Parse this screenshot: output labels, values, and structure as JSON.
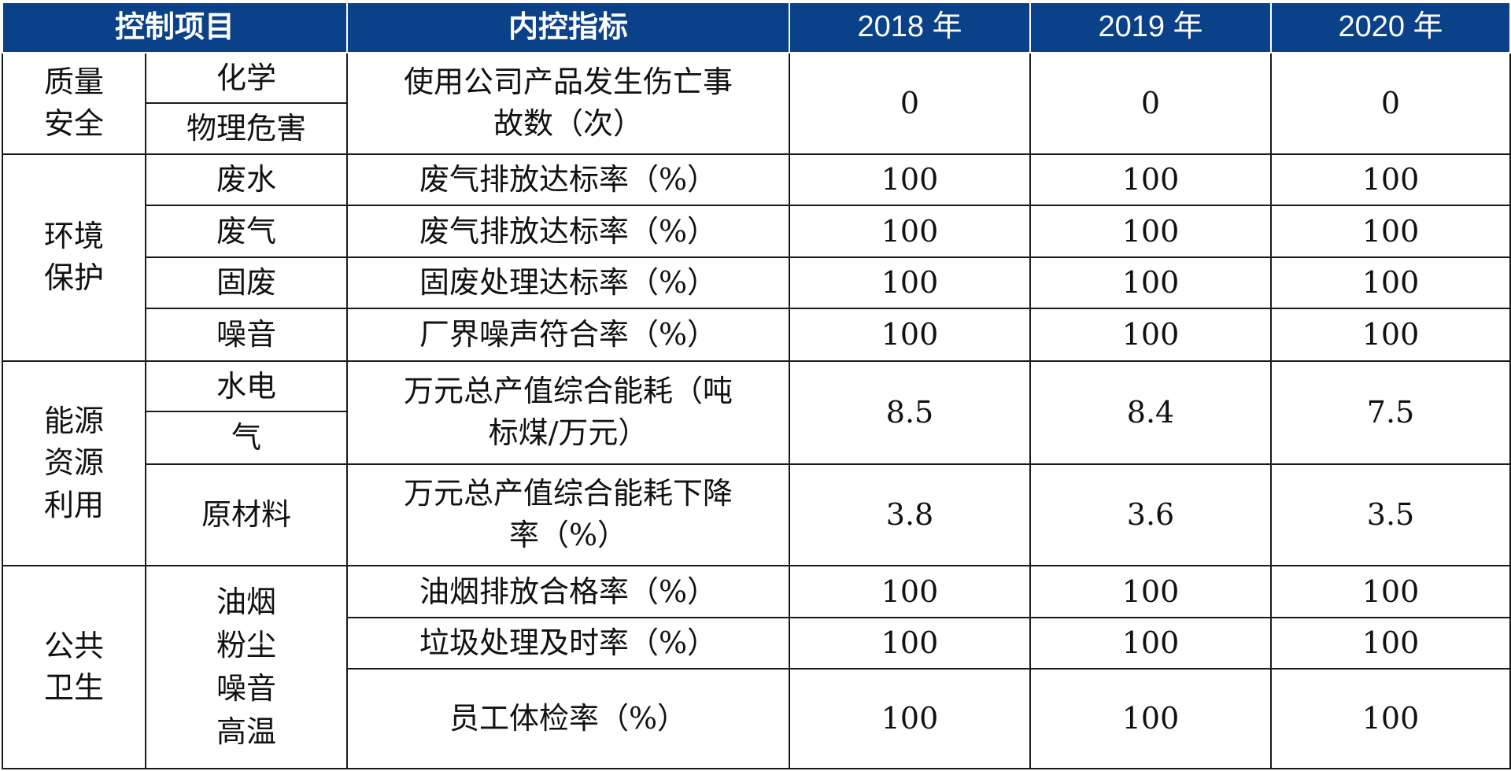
{
  "header": {
    "col_item": "控制项目",
    "col_indicator": "内控指标",
    "col_2018": "2018 年",
    "col_2019": "2019 年",
    "col_2020": "2020 年"
  },
  "groups": {
    "quality": {
      "label_l1": "质量",
      "label_l2": "安全"
    },
    "env": {
      "label_l1": "环境",
      "label_l2": "保护"
    },
    "energy": {
      "label_l1": "能源",
      "label_l2": "资源",
      "label_l3": "利用"
    },
    "health": {
      "label_l1": "公共",
      "label_l2": "卫生"
    }
  },
  "rows": {
    "q_chem": "化学",
    "q_phys": "物理危害",
    "q_ind_l1": "使用公司产品发生伤亡事",
    "q_ind_l2": "故数（次）",
    "q_2018": "0",
    "q_2019": "0",
    "q_2020": "0",
    "e1_sub": "废水",
    "e1_ind": "废气排放达标率（%）",
    "e1_2018": "100",
    "e1_2019": "100",
    "e1_2020": "100",
    "e2_sub": "废气",
    "e2_ind": "废气排放达标率（%）",
    "e2_2018": "100",
    "e2_2019": "100",
    "e2_2020": "100",
    "e3_sub": "固废",
    "e3_ind": "固废处理达标率（%）",
    "e3_2018": "100",
    "e3_2019": "100",
    "e3_2020": "100",
    "e4_sub": "噪音",
    "e4_ind": "厂界噪声符合率（%）",
    "e4_2018": "100",
    "e4_2019": "100",
    "e4_2020": "100",
    "n1_sub_a": "水电",
    "n1_sub_b": "气",
    "n1_ind_l1": "万元总产值综合能耗（吨",
    "n1_ind_l2": "标煤/万元）",
    "n1_2018": "8.5",
    "n1_2019": "8.4",
    "n1_2020": "7.5",
    "n2_sub": "原材料",
    "n2_ind_l1": "万元总产值综合能耗下降",
    "n2_ind_l2": "率（%）",
    "n2_2018": "3.8",
    "n2_2019": "3.6",
    "n2_2020": "3.5",
    "h_sub_l1": "油烟",
    "h_sub_l2": "粉尘",
    "h_sub_l3": "噪音",
    "h_sub_l4": "高温",
    "h1_ind": "油烟排放合格率（%）",
    "h1_2018": "100",
    "h1_2019": "100",
    "h1_2020": "100",
    "h2_ind": "垃圾处理及时率（%）",
    "h2_2018": "100",
    "h2_2019": "100",
    "h2_2020": "100",
    "h3_ind": "员工体检率（%）",
    "h3_2018": "100",
    "h3_2019": "100",
    "h3_2020": "100"
  }
}
